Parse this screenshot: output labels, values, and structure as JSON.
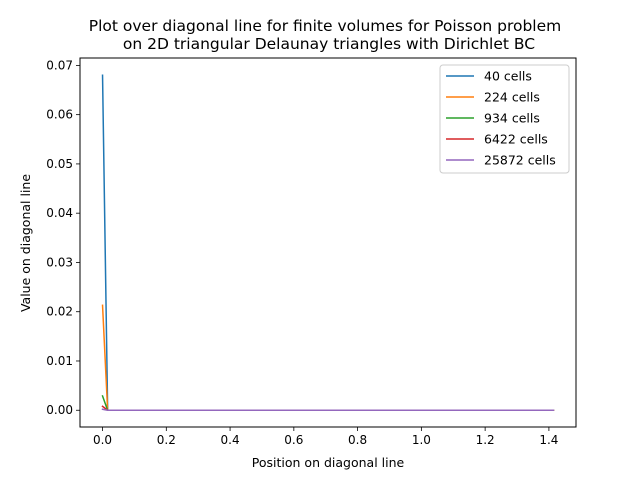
{
  "chart_data": {
    "type": "line",
    "title": "Plot over diagonal line for finite volumes for Poisson problem\non 2D triangular Delaunay triangles with Dirichlet BC",
    "title_lines": [
      "Plot over diagonal line for finite volumes for Poisson problem",
      "on 2D triangular Delaunay triangles with Dirichlet BC"
    ],
    "xlabel": "Position on diagonal line",
    "ylabel": "Value on diagonal line",
    "xlim": [
      -0.0707,
      1.485
    ],
    "ylim": [
      -0.0034,
      0.0715
    ],
    "xticks": [
      0.0,
      0.2,
      0.4,
      0.6,
      0.8,
      1.0,
      1.2,
      1.4
    ],
    "xtick_labels": [
      "0.0",
      "0.2",
      "0.4",
      "0.6",
      "0.8",
      "1.0",
      "1.2",
      "1.4"
    ],
    "yticks": [
      0.0,
      0.01,
      0.02,
      0.03,
      0.04,
      0.05,
      0.06,
      0.07
    ],
    "ytick_labels": [
      "0.00",
      "0.01",
      "0.02",
      "0.03",
      "0.04",
      "0.05",
      "0.06",
      "0.07"
    ],
    "grid": false,
    "legend_position": "top-right",
    "series": [
      {
        "name": "40 cells",
        "color": "#1f77b4",
        "x": [
          0.0,
          0.016,
          0.1,
          0.4,
          0.7,
          1.0,
          1.3,
          1.414
        ],
        "y": [
          0.068,
          0.0,
          0.0,
          0.0,
          0.0,
          0.0,
          0.0,
          0.0
        ]
      },
      {
        "name": "224 cells",
        "color": "#ff7f0e",
        "x": [
          0.0,
          0.016,
          0.1,
          0.4,
          0.7,
          1.0,
          1.3,
          1.414
        ],
        "y": [
          0.0213,
          0.0,
          0.0,
          0.0,
          0.0,
          0.0,
          0.0,
          0.0
        ]
      },
      {
        "name": "934 cells",
        "color": "#2ca02c",
        "x": [
          0.0,
          0.016,
          0.1,
          0.4,
          0.7,
          1.0,
          1.3,
          1.414
        ],
        "y": [
          0.0029,
          0.0,
          0.0,
          0.0,
          0.0,
          0.0,
          0.0,
          0.0
        ]
      },
      {
        "name": "6422 cells",
        "color": "#d62728",
        "x": [
          0.0,
          0.016,
          0.1,
          0.4,
          0.7,
          1.0,
          1.3,
          1.414
        ],
        "y": [
          0.0008,
          0.0,
          0.0,
          0.0,
          0.0,
          0.0,
          0.0,
          0.0
        ]
      },
      {
        "name": "25872 cells",
        "color": "#9467bd",
        "x": [
          0.0,
          0.016,
          0.1,
          0.4,
          0.7,
          1.0,
          1.3,
          1.414
        ],
        "y": [
          0.0002,
          0.0,
          0.0,
          0.0,
          0.0,
          0.0,
          0.0,
          0.0
        ]
      }
    ]
  }
}
